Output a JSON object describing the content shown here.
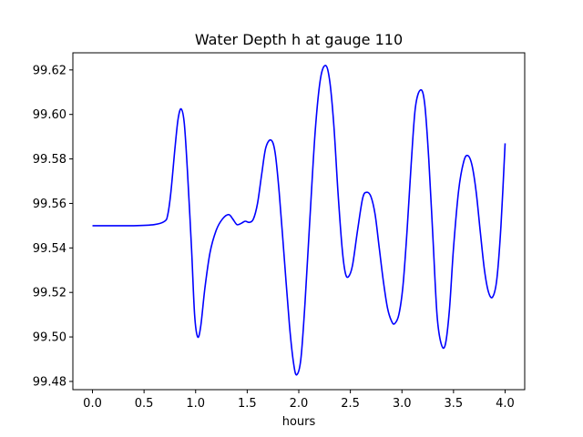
{
  "chart_data": {
    "type": "line",
    "title": "Water Depth h at gauge 110",
    "xlabel": "hours",
    "ylabel": "",
    "xlim": [
      -0.19,
      4.19
    ],
    "ylim": [
      99.4763,
      99.6277
    ],
    "x_ticks": [
      0.0,
      0.5,
      1.0,
      1.5,
      2.0,
      2.5,
      3.0,
      3.5,
      4.0
    ],
    "x_tick_labels": [
      "0.0",
      "0.5",
      "1.0",
      "1.5",
      "2.0",
      "2.5",
      "3.0",
      "3.5",
      "4.0"
    ],
    "y_ticks": [
      99.48,
      99.5,
      99.52,
      99.54,
      99.56,
      99.58,
      99.6,
      99.62
    ],
    "y_tick_labels": [
      "99.48",
      "99.50",
      "99.52",
      "99.54",
      "99.56",
      "99.58",
      "99.60",
      "99.62"
    ],
    "grid": false,
    "series": [
      {
        "color": "#0000ff",
        "points": [
          [
            0.0,
            99.55
          ],
          [
            0.4,
            99.55
          ],
          [
            0.6,
            99.5505
          ],
          [
            0.7,
            99.552
          ],
          [
            0.73,
            99.555
          ],
          [
            0.76,
            99.565
          ],
          [
            0.8,
            99.585
          ],
          [
            0.83,
            99.598
          ],
          [
            0.86,
            99.6025
          ],
          [
            0.89,
            99.596
          ],
          [
            0.92,
            99.575
          ],
          [
            0.96,
            99.54
          ],
          [
            0.99,
            99.51
          ],
          [
            1.02,
            99.5
          ],
          [
            1.05,
            99.505
          ],
          [
            1.09,
            99.522
          ],
          [
            1.14,
            99.538
          ],
          [
            1.2,
            99.548
          ],
          [
            1.26,
            99.553
          ],
          [
            1.32,
            99.555
          ],
          [
            1.36,
            99.553
          ],
          [
            1.4,
            99.5505
          ],
          [
            1.44,
            99.551
          ],
          [
            1.48,
            99.552
          ],
          [
            1.52,
            99.5515
          ],
          [
            1.56,
            99.553
          ],
          [
            1.6,
            99.56
          ],
          [
            1.64,
            99.573
          ],
          [
            1.68,
            99.585
          ],
          [
            1.73,
            99.5885
          ],
          [
            1.77,
            99.583
          ],
          [
            1.81,
            99.565
          ],
          [
            1.86,
            99.535
          ],
          [
            1.91,
            99.505
          ],
          [
            1.95,
            99.488
          ],
          [
            1.98,
            99.483
          ],
          [
            2.02,
            99.49
          ],
          [
            2.06,
            99.515
          ],
          [
            2.11,
            99.555
          ],
          [
            2.16,
            99.593
          ],
          [
            2.21,
            99.616
          ],
          [
            2.26,
            99.622
          ],
          [
            2.3,
            99.615
          ],
          [
            2.34,
            99.595
          ],
          [
            2.38,
            99.565
          ],
          [
            2.42,
            99.54
          ],
          [
            2.45,
            99.529
          ],
          [
            2.48,
            99.527
          ],
          [
            2.52,
            99.532
          ],
          [
            2.57,
            99.548
          ],
          [
            2.62,
            99.5625
          ],
          [
            2.66,
            99.565
          ],
          [
            2.7,
            99.563
          ],
          [
            2.74,
            99.555
          ],
          [
            2.78,
            99.54
          ],
          [
            2.82,
            99.525
          ],
          [
            2.86,
            99.513
          ],
          [
            2.9,
            99.507
          ],
          [
            2.93,
            99.506
          ],
          [
            2.97,
            99.51
          ],
          [
            3.01,
            99.523
          ],
          [
            3.05,
            99.548
          ],
          [
            3.09,
            99.578
          ],
          [
            3.13,
            99.603
          ],
          [
            3.18,
            99.611
          ],
          [
            3.22,
            99.605
          ],
          [
            3.26,
            99.58
          ],
          [
            3.3,
            99.545
          ],
          [
            3.34,
            99.51
          ],
          [
            3.38,
            99.497
          ],
          [
            3.42,
            99.4965
          ],
          [
            3.46,
            99.512
          ],
          [
            3.5,
            99.54
          ],
          [
            3.55,
            99.566
          ],
          [
            3.6,
            99.579
          ],
          [
            3.64,
            99.5815
          ],
          [
            3.68,
            99.577
          ],
          [
            3.72,
            99.565
          ],
          [
            3.76,
            99.547
          ],
          [
            3.8,
            99.53
          ],
          [
            3.84,
            99.52
          ],
          [
            3.88,
            99.518
          ],
          [
            3.92,
            99.526
          ],
          [
            3.96,
            99.55
          ],
          [
            4.0,
            99.587
          ]
        ]
      }
    ]
  }
}
